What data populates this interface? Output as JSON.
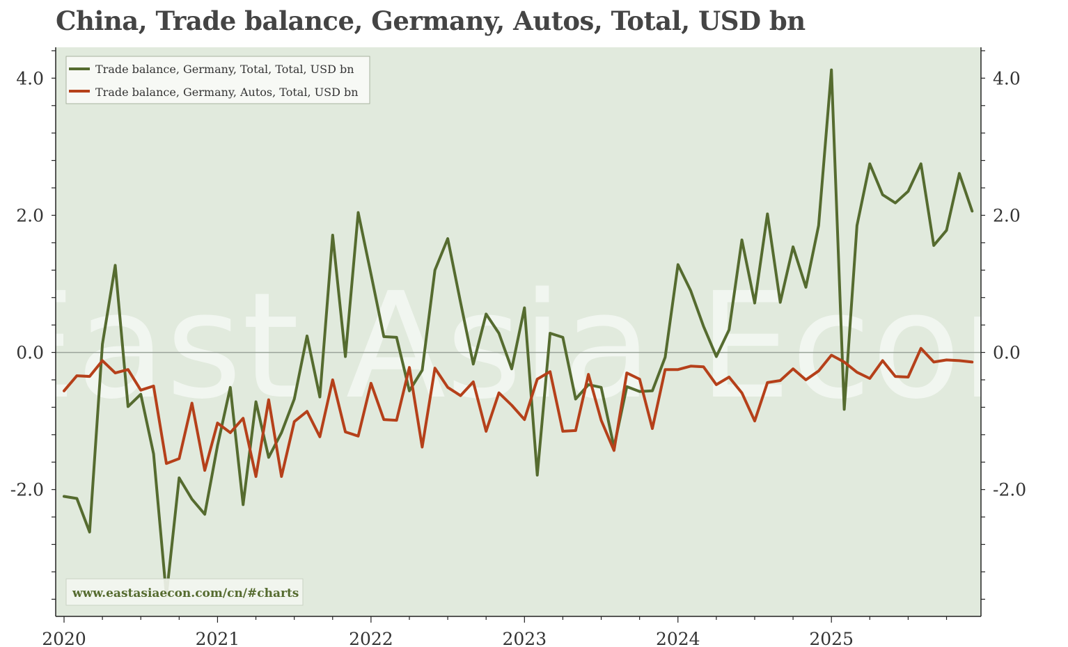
{
  "title": "China, Trade balance, Germany, Autos, Total, USD bn",
  "watermark": "East Asia Econ",
  "source": "www.eastasiaecon.com/cn/#charts",
  "colors": {
    "plot_bg": "#e1eadd",
    "total_series": "#556b2f",
    "autos_series": "#b5401a",
    "zero_line": "#9aa39a"
  },
  "chart_data": {
    "type": "line",
    "title": "China, Trade balance, Germany, Autos, Total, USD bn",
    "xlabel": "",
    "ylabel": "",
    "x_start": "2020-01",
    "x_ticks": [
      "2020",
      "2021",
      "2022",
      "2023",
      "2024",
      "2025"
    ],
    "y_ticks": [
      "4.0",
      "2.0",
      "0.0",
      "-2.0"
    ],
    "ylim": [
      -3.85,
      4.45
    ],
    "grid": false,
    "legend_position": "top-left",
    "series": [
      {
        "name": "Trade balance, Germany, Total, Total, USD bn",
        "color": "#556b2f",
        "values": [
          -2.1,
          -2.13,
          -2.62,
          0.12,
          1.27,
          -0.79,
          -0.61,
          -1.48,
          -3.55,
          -1.83,
          -2.14,
          -2.36,
          -1.36,
          -0.51,
          -2.22,
          -0.72,
          -1.53,
          -1.17,
          -0.68,
          0.24,
          -0.65,
          1.71,
          -0.06,
          2.04,
          1.14,
          0.23,
          0.22,
          -0.56,
          -0.26,
          1.2,
          1.66,
          0.73,
          -0.17,
          0.56,
          0.28,
          -0.24,
          0.65,
          -1.79,
          0.28,
          0.22,
          -0.68,
          -0.47,
          -0.51,
          -1.38,
          -0.5,
          -0.57,
          -0.56,
          -0.07,
          1.28,
          0.9,
          0.38,
          -0.06,
          0.33,
          1.64,
          0.72,
          2.02,
          0.73,
          1.54,
          0.95,
          1.85,
          4.12,
          -0.83,
          1.85,
          2.75,
          2.3,
          2.18,
          2.35,
          2.75,
          1.56,
          1.78,
          2.61,
          2.06
        ]
      },
      {
        "name": "Trade balance, Germany, Autos, Total, USD bn",
        "color": "#b5401a",
        "values": [
          -0.56,
          -0.34,
          -0.35,
          -0.12,
          -0.3,
          -0.25,
          -0.55,
          -0.49,
          -1.62,
          -1.55,
          -0.74,
          -1.72,
          -1.03,
          -1.17,
          -0.96,
          -1.81,
          -0.69,
          -1.81,
          -1.01,
          -0.86,
          -1.23,
          -0.4,
          -1.16,
          -1.22,
          -0.45,
          -0.98,
          -0.99,
          -0.22,
          -1.38,
          -0.23,
          -0.51,
          -0.63,
          -0.43,
          -1.15,
          -0.59,
          -0.77,
          -0.98,
          -0.39,
          -0.28,
          -1.15,
          -1.14,
          -0.32,
          -0.99,
          -1.43,
          -0.3,
          -0.39,
          -1.11,
          -0.25,
          -0.25,
          -0.2,
          -0.21,
          -0.47,
          -0.36,
          -0.59,
          -1.0,
          -0.44,
          -0.41,
          -0.24,
          -0.4,
          -0.27,
          -0.04,
          -0.14,
          -0.29,
          -0.38,
          -0.12,
          -0.35,
          -0.36,
          0.06,
          -0.14,
          -0.11,
          -0.12,
          -0.14
        ]
      }
    ]
  }
}
